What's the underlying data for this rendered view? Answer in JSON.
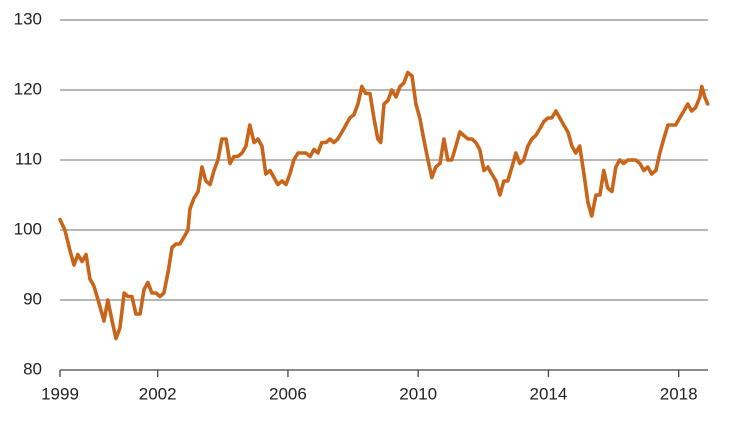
{
  "chart_data": {
    "type": "line",
    "color": "#c8651b",
    "grid": true,
    "xlim": [
      1999,
      2018.9
    ],
    "xticks": [
      1999,
      2002,
      2006,
      2010,
      2014,
      2018
    ],
    "ylim": [
      80,
      130
    ],
    "yticks": [
      80,
      90,
      100,
      110,
      120,
      130
    ],
    "x": [
      1999.0,
      1999.15,
      1999.31,
      1999.43,
      1999.55,
      1999.68,
      1999.8,
      1999.92,
      2000.04,
      2000.17,
      2000.35,
      2000.47,
      2000.6,
      2000.72,
      2000.84,
      2000.97,
      2001.09,
      2001.21,
      2001.33,
      2001.46,
      2001.58,
      2001.7,
      2001.82,
      2001.95,
      2002.07,
      2002.19,
      2002.32,
      2002.44,
      2002.56,
      2002.68,
      2002.81,
      2002.93,
      2002.99,
      2003.11,
      2003.24,
      2003.36,
      2003.48,
      2003.61,
      2003.73,
      2003.85,
      2003.97,
      2004.1,
      2004.22,
      2004.34,
      2004.46,
      2004.59,
      2004.71,
      2004.83,
      2004.96,
      2005.08,
      2005.2,
      2005.32,
      2005.45,
      2005.57,
      2005.69,
      2005.82,
      2005.94,
      2006.06,
      2006.18,
      2006.31,
      2006.43,
      2006.55,
      2006.68,
      2006.8,
      2006.92,
      2007.04,
      2007.17,
      2007.29,
      2007.41,
      2007.53,
      2007.66,
      2007.78,
      2007.9,
      2008.03,
      2008.15,
      2008.27,
      2008.39,
      2008.52,
      2008.64,
      2008.76,
      2008.85,
      2008.95,
      2009.07,
      2009.19,
      2009.32,
      2009.44,
      2009.56,
      2009.68,
      2009.81,
      2009.93,
      2010.05,
      2010.17,
      2010.3,
      2010.42,
      2010.54,
      2010.67,
      2010.79,
      2010.91,
      2011.03,
      2011.16,
      2011.28,
      2011.4,
      2011.53,
      2011.65,
      2011.77,
      2011.89,
      2012.02,
      2012.14,
      2012.26,
      2012.39,
      2012.51,
      2012.63,
      2012.75,
      2012.88,
      2013.0,
      2013.12,
      2013.24,
      2013.37,
      2013.49,
      2013.61,
      2013.74,
      2013.86,
      2013.98,
      2014.1,
      2014.23,
      2014.35,
      2014.47,
      2014.6,
      2014.72,
      2014.84,
      2014.96,
      2015.09,
      2015.21,
      2015.33,
      2015.46,
      2015.58,
      2015.7,
      2015.82,
      2015.95,
      2016.07,
      2016.19,
      2016.31,
      2016.44,
      2016.56,
      2016.68,
      2016.81,
      2016.93,
      2017.05,
      2017.17,
      2017.3,
      2017.42,
      2017.54,
      2017.67,
      2017.79,
      2017.91,
      2018.03,
      2018.16,
      2018.28,
      2018.4,
      2018.52,
      2018.65,
      2018.71,
      2018.8,
      2018.89
    ],
    "values": [
      101.5,
      100,
      97,
      95,
      96.5,
      95.5,
      96.5,
      93,
      92,
      90,
      87,
      90,
      87,
      84.5,
      86,
      91,
      90.5,
      90.5,
      88,
      88,
      91.5,
      92.5,
      91,
      91,
      90.5,
      91,
      94,
      97.5,
      98,
      98,
      99,
      100,
      103,
      104.5,
      105.5,
      109,
      107,
      106.5,
      108.5,
      110,
      113,
      113,
      109.5,
      110.5,
      110.5,
      111,
      112,
      115,
      112.5,
      113,
      112,
      108,
      108.5,
      107.5,
      106.5,
      107,
      106.5,
      108,
      110,
      111,
      111,
      111,
      110.5,
      111.5,
      111,
      112.5,
      112.5,
      113,
      112.5,
      113,
      114,
      115,
      116,
      116.5,
      118,
      120.5,
      119.5,
      119.5,
      116,
      113,
      112.5,
      118,
      118.5,
      120,
      119,
      120.5,
      121,
      122.5,
      122,
      118,
      116,
      113,
      110,
      107.5,
      109,
      109.5,
      113,
      110,
      110,
      112,
      114,
      113.5,
      113,
      113,
      112.5,
      111.5,
      108.5,
      109,
      108,
      107,
      105,
      107,
      107,
      109,
      111,
      109.5,
      110,
      112,
      113,
      113.5,
      114.5,
      115.5,
      116,
      116,
      117,
      116,
      115,
      114,
      112,
      111,
      112,
      108,
      104,
      102,
      105,
      105,
      108.5,
      106,
      105.5,
      109,
      110,
      109.5,
      110,
      110,
      110,
      109.5,
      108.5,
      109,
      108,
      108.5,
      111,
      113,
      115,
      115,
      115,
      116,
      117,
      118,
      117,
      117.5,
      119,
      120.5,
      119,
      118
    ]
  }
}
